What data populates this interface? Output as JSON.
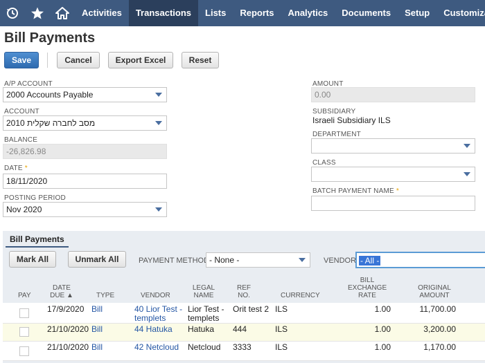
{
  "nav": {
    "icons": [
      "history-icon",
      "star-icon",
      "home-icon"
    ],
    "items": [
      "Activities",
      "Transactions",
      "Lists",
      "Reports",
      "Analytics",
      "Documents",
      "Setup",
      "Customization"
    ],
    "active_index": 1,
    "bar_color": "#3e5a80"
  },
  "page": {
    "title": "Bill Payments"
  },
  "toolbar": {
    "save": "Save",
    "cancel": "Cancel",
    "export": "Export Excel",
    "reset": "Reset"
  },
  "form": {
    "ap_account": {
      "label": "A/P ACCOUNT",
      "value": "2000 Accounts Payable"
    },
    "account": {
      "label": "ACCOUNT",
      "value": "2010 מסב לחברה שקלית"
    },
    "balance": {
      "label": "BALANCE",
      "value": "-26,826.98"
    },
    "date": {
      "label": "DATE",
      "value": "18/11/2020"
    },
    "posting_period": {
      "label": "POSTING PERIOD",
      "value": "Nov 2020"
    },
    "amount": {
      "label": "AMOUNT",
      "value": "0.00"
    },
    "subsidiary": {
      "label": "SUBSIDIARY",
      "value": "Israeli Subsidiary ILS"
    },
    "department": {
      "label": "DEPARTMENT",
      "value": ""
    },
    "class": {
      "label": "CLASS",
      "value": ""
    },
    "batch_payment_name": {
      "label": "BATCH PAYMENT NAME",
      "value": ""
    },
    "required_mark": "*"
  },
  "sublist": {
    "tab": "Bill Payments",
    "mark_all": "Mark All",
    "unmark_all": "Unmark All",
    "payment_method_label": "PAYMENT METHOD",
    "payment_method_value": "- None -",
    "vendor_label": "VENDOR",
    "vendor_value": "- All -",
    "columns": {
      "pay": "PAY",
      "date_due_1": "DATE",
      "date_due_2": "DUE ▲",
      "type": "TYPE",
      "vendor": "VENDOR",
      "legal_1": "LEGAL",
      "legal_2": "NAME",
      "ref_1": "REF",
      "ref_2": "NO.",
      "currency": "CURRENCY",
      "rate_1": "BILL",
      "rate_2": "EXCHANGE",
      "rate_3": "RATE",
      "orig_1": "ORIGINAL",
      "orig_2": "AMOUNT"
    },
    "rows": [
      {
        "date": "17/9/2020",
        "type": "Bill",
        "vendor_1": "40 Lior Test -",
        "vendor_2": "templets",
        "legal_1": "Lior Test -",
        "legal_2": "templets",
        "ref": "Orit test 2",
        "currency": "ILS",
        "rate": "1.00",
        "amount": "11,700.00"
      },
      {
        "date": "21/10/2020",
        "type": "Bill",
        "vendor_1": "44 Hatuka",
        "vendor_2": "",
        "legal_1": "Hatuka",
        "legal_2": "",
        "ref": "444",
        "currency": "ILS",
        "rate": "1.00",
        "amount": "3,200.00"
      },
      {
        "date": "21/10/2020",
        "type": "Bill",
        "vendor_1": "42 Netcloud",
        "vendor_2": "",
        "legal_1": "Netcloud",
        "legal_2": "",
        "ref": "3333",
        "currency": "ILS",
        "rate": "1.00",
        "amount": "1,170.00"
      }
    ]
  }
}
